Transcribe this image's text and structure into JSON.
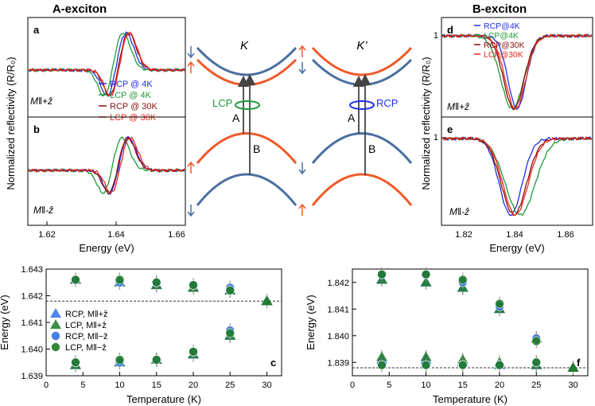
{
  "colors": {
    "rcp4": "#1f2fe6",
    "lcp4": "#1e9a3a",
    "rcp30": "#8b0f0f",
    "lcp30": "#e8271d",
    "band_blue": "#4a6fa0",
    "band_red": "#ef5a2a",
    "tri_blue": "#2f6fe8",
    "tri_green": "#1f7a2a"
  },
  "titles": {
    "a_exciton": "A-exciton",
    "b_exciton": "B-exciton"
  },
  "panel_labels": {
    "a": "a",
    "b": "b",
    "c": "c",
    "d": "d",
    "e": "e",
    "f": "f"
  },
  "reflectivity": {
    "ylabel": "Normalized reflectivity (R/R₀)",
    "xlabel": "Energy (eV)",
    "field_plus": "M‖+ẑ",
    "field_minus": "M‖-ẑ",
    "a_ticks": [
      "1.62",
      "1.64",
      "1.66"
    ],
    "b_ticks": [
      "1.82",
      "1.84",
      "1.86"
    ],
    "ytick": "1"
  },
  "legend_a": [
    "RCP @ 4K",
    "LCP @ 4K",
    "RCP @ 30K",
    "LCP @ 30K"
  ],
  "legend_d": [
    "RCP@4K",
    "LCP@4K",
    "RCP@30K",
    "LCP@30K"
  ],
  "diagram": {
    "valley_k": "K",
    "valley_kp": "K’",
    "lcp": "LCP",
    "rcp": "RCP",
    "trans_a": "A",
    "trans_b": "B"
  },
  "chart_data": [
    {
      "type": "scatter",
      "panel": "c",
      "title": "",
      "xlabel": "Temperature (K)",
      "ylabel": "Energy (eV)",
      "xlim": [
        0,
        32
      ],
      "ylim": [
        1.639,
        1.643
      ],
      "xticks": [
        "0",
        "5",
        "10",
        "15",
        "20",
        "25",
        "30"
      ],
      "yticks": [
        "1.639",
        "1.640",
        "1.641",
        "1.642",
        "1.643"
      ],
      "reference_line": 1.6418,
      "legend": [
        "RCP, M‖+ẑ",
        "LCP, M‖+ẑ",
        "RCP, M‖−ẑ",
        "LCP, M‖−ẑ"
      ],
      "series": [
        {
          "name": "RCP, M‖+ẑ",
          "x": [
            4,
            10,
            15,
            20,
            25,
            30
          ],
          "upper": [
            1.6426,
            1.6425,
            1.6424,
            1.6423,
            1.6422,
            1.6418
          ],
          "lower": [
            1.6394,
            1.6395,
            1.6396,
            1.6398,
            1.6405,
            1.6418
          ]
        },
        {
          "name": "LCP, M‖+ẑ",
          "x": [
            4,
            10,
            15,
            20,
            25,
            30
          ],
          "upper": [
            1.6426,
            1.6425,
            1.6424,
            1.6423,
            1.6422,
            1.6418
          ],
          "lower": [
            1.6394,
            1.6395,
            1.6396,
            1.6398,
            1.6405,
            1.6418
          ]
        },
        {
          "name": "RCP, M‖−ẑ",
          "x": [
            4,
            10,
            15,
            20,
            25
          ],
          "upper": [
            1.6426,
            1.6425,
            1.6425,
            1.6424,
            1.6423
          ],
          "lower": [
            1.6395,
            1.6395,
            1.6396,
            1.6399,
            1.6407
          ]
        },
        {
          "name": "LCP, M‖−ẑ",
          "x": [
            4,
            10,
            15,
            20,
            25
          ],
          "upper": [
            1.6426,
            1.6426,
            1.6425,
            1.6424,
            1.6422
          ],
          "lower": [
            1.6395,
            1.6396,
            1.6396,
            1.6399,
            1.6406
          ]
        }
      ]
    },
    {
      "type": "scatter",
      "panel": "f",
      "title": "",
      "xlabel": "Temperature (K)",
      "ylabel": "Energy (eV)",
      "xlim": [
        0,
        32
      ],
      "ylim": [
        1.8385,
        1.8425
      ],
      "xticks": [
        "0",
        "5",
        "10",
        "15",
        "20",
        "25",
        "30"
      ],
      "yticks": [
        "1.839",
        "1.840",
        "1.841",
        "1.842"
      ],
      "reference_line": 1.8388,
      "series": [
        {
          "name": "RCP, M‖+ẑ",
          "x": [
            4,
            10,
            15,
            20,
            25,
            30
          ],
          "upper": [
            1.8421,
            1.842,
            1.8418,
            1.841,
            1.8399,
            1.8388
          ],
          "lower": [
            1.8391,
            1.8391,
            1.839,
            1.8389,
            1.8389,
            1.8388
          ]
        },
        {
          "name": "LCP, M‖+ẑ",
          "x": [
            4,
            10,
            15,
            20,
            25,
            30
          ],
          "upper": [
            1.8421,
            1.842,
            1.8418,
            1.841,
            1.8399,
            1.8388
          ],
          "lower": [
            1.8392,
            1.8392,
            1.8391,
            1.839,
            1.8389,
            1.8388
          ]
        },
        {
          "name": "RCP, M‖−ẑ",
          "x": [
            4,
            10,
            15,
            20,
            25
          ],
          "upper": [
            1.8423,
            1.8423,
            1.842,
            1.8411,
            1.8399
          ],
          "lower": [
            1.8389,
            1.8389,
            1.8389,
            1.8389,
            1.839
          ]
        },
        {
          "name": "LCP, M‖−ẑ",
          "x": [
            4,
            10,
            15,
            20,
            25
          ],
          "upper": [
            1.8423,
            1.8423,
            1.8421,
            1.8412,
            1.8398
          ],
          "lower": [
            1.8389,
            1.8389,
            1.8389,
            1.8389,
            1.839
          ]
        }
      ]
    }
  ]
}
